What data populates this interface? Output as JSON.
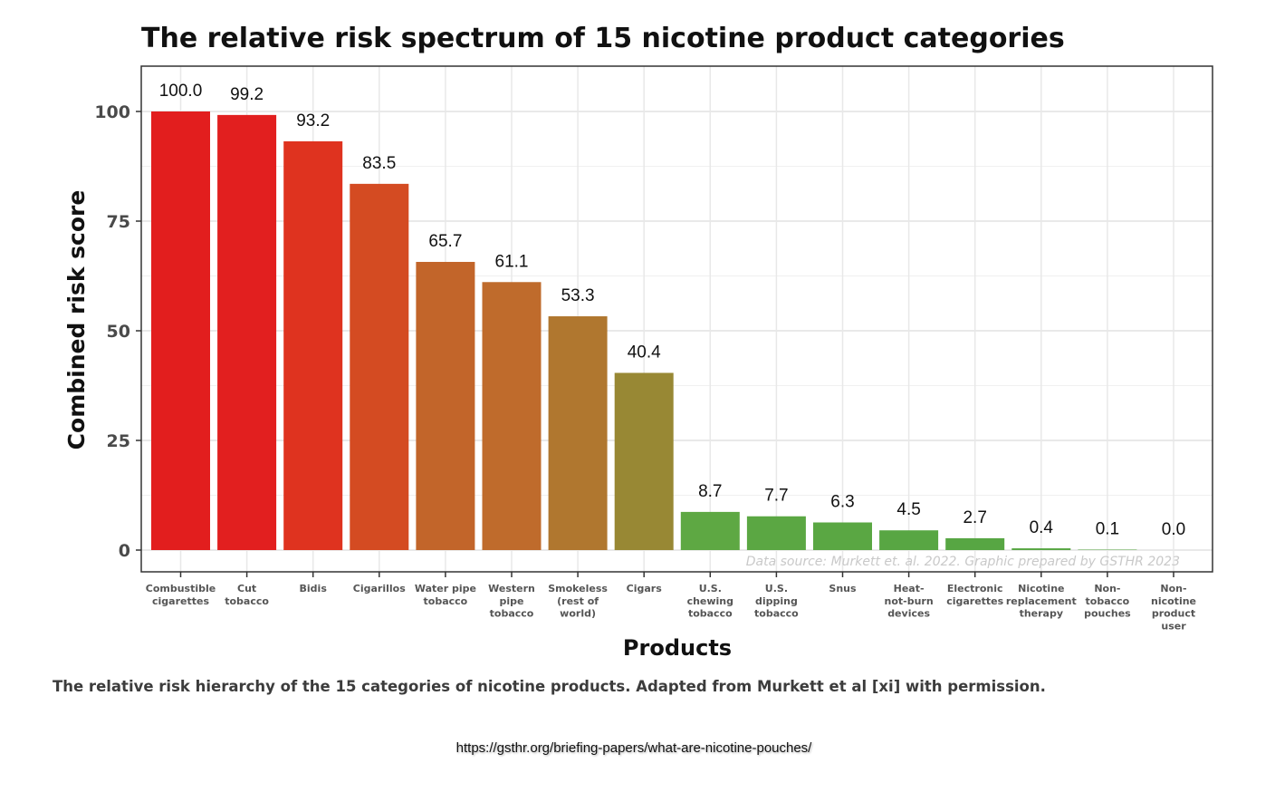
{
  "chart_data": {
    "type": "bar",
    "title": "The relative risk spectrum of 15 nicotine product categories",
    "xlabel": "Products",
    "ylabel": "Combined risk score",
    "ylim": [
      0,
      105
    ],
    "yticks": [
      "0",
      "25",
      "50",
      "75",
      "100"
    ],
    "grid": true,
    "categories": [
      "Combustible cigarettes",
      "Cut tobacco",
      "Bidis",
      "Cigarillos",
      "Water pipe tobacco",
      "Western pipe tobacco",
      "Smokeless (rest of world)",
      "Cigars",
      "U.S. chewing tobacco",
      "U.S. dipping tobacco",
      "Snus",
      "Heat-not-burn devices",
      "Electronic cigarettes",
      "Nicotine replacement therapy",
      "Non-tobacco pouches",
      "Non-nicotine product user"
    ],
    "tick_lines": [
      [
        "Combustible",
        "cigarettes"
      ],
      [
        "Cut",
        "tobacco"
      ],
      [
        "Bidis"
      ],
      [
        "Cigarillos"
      ],
      [
        "Water pipe",
        "tobacco"
      ],
      [
        "Western",
        "pipe",
        "tobacco"
      ],
      [
        "Smokeless",
        "(rest of",
        "world)"
      ],
      [
        "Cigars"
      ],
      [
        "U.S.",
        "chewing",
        "tobacco"
      ],
      [
        "U.S.",
        "dipping",
        "tobacco"
      ],
      [
        "Snus"
      ],
      [
        "Heat-",
        "not-burn",
        "devices"
      ],
      [
        "Electronic",
        "cigarettes"
      ],
      [
        "Nicotine",
        "replacement",
        "therapy"
      ],
      [
        "Non-",
        "tobacco",
        "pouches"
      ],
      [
        "Non-",
        "nicotine",
        "product",
        "user"
      ]
    ],
    "values": [
      100.0,
      99.2,
      93.2,
      83.5,
      65.7,
      61.1,
      53.3,
      40.4,
      8.7,
      7.7,
      6.3,
      4.5,
      2.7,
      0.4,
      0.1,
      0.0
    ],
    "data_labels": [
      "100.0",
      "99.2",
      "93.2",
      "83.5",
      "65.7",
      "61.1",
      "53.3",
      "40.4",
      "8.7",
      "7.7",
      "6.3",
      "4.5",
      "2.7",
      "0.4",
      "0.1",
      "0.0"
    ],
    "colors": [
      "#e21e1e",
      "#e21f1f",
      "#df331f",
      "#d44b22",
      "#c2652a",
      "#bf6b2c",
      "#b0772f",
      "#988834",
      "#5ea843",
      "#5ba743",
      "#5aa743",
      "#58a643",
      "#57a643",
      "#57a643",
      "#57a643",
      "#57a643"
    ],
    "credit": "Data source: Murkett et. al. 2022. Graphic prepared by GSTHR 2023"
  },
  "caption": "The relative risk hierarchy of the 15 categories of nicotine products. Adapted from Murkett et al [xi] with permission.",
  "source_url": "https://gsthr.org/briefing-papers/what-are-nicotine-pouches/"
}
